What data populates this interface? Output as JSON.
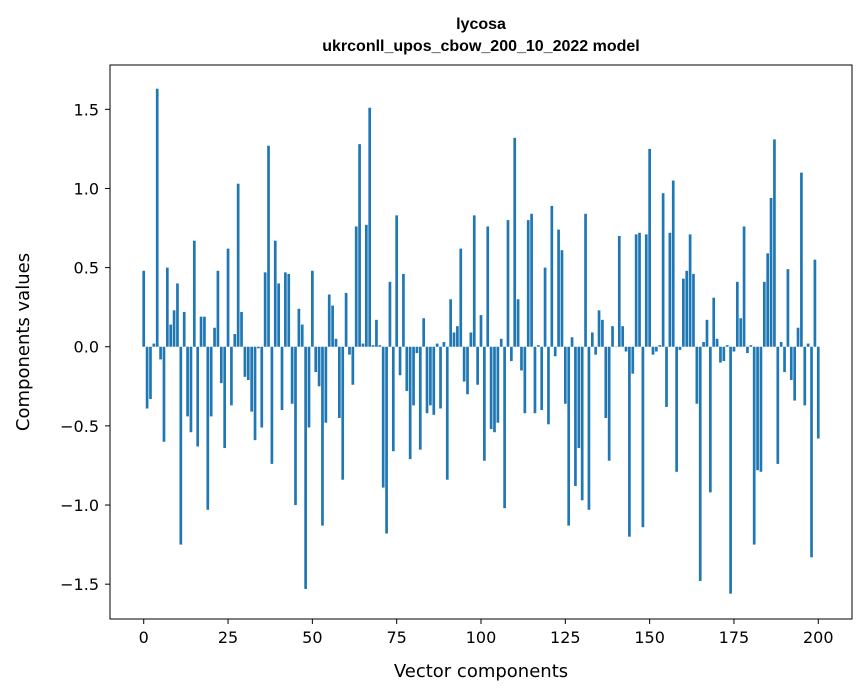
{
  "chart_data": {
    "type": "bar",
    "title": "lycosa",
    "subtitle": "ukrconll_upos_cbow_200_10_2022 model",
    "xlabel": "Vector components",
    "ylabel": "Components values",
    "xlim": [
      -10,
      210
    ],
    "ylim": [
      -1.72,
      1.78
    ],
    "xticks": [
      0,
      25,
      50,
      75,
      100,
      125,
      150,
      175,
      200
    ],
    "yticks": [
      -1.5,
      -1.0,
      -0.5,
      0.0,
      0.5,
      1.0,
      1.5
    ],
    "ytick_labels": [
      "−1.5",
      "−1.0",
      "−0.5",
      "0.0",
      "0.5",
      "1.0",
      "1.5"
    ],
    "grid": false,
    "bar_color": "#1f77b4",
    "values": [
      0.48,
      -0.39,
      -0.33,
      0.02,
      1.63,
      -0.08,
      -0.6,
      0.5,
      0.14,
      0.23,
      0.4,
      -1.25,
      0.22,
      -0.44,
      -0.54,
      0.67,
      -0.63,
      0.19,
      0.19,
      -1.03,
      -0.44,
      0.12,
      0.48,
      -0.23,
      -0.64,
      0.62,
      -0.37,
      0.08,
      1.03,
      0.22,
      -0.19,
      -0.21,
      -0.41,
      -0.59,
      -0.01,
      -0.51,
      0.47,
      1.27,
      -0.74,
      0.67,
      0.4,
      -0.4,
      0.47,
      0.46,
      -0.36,
      -1.0,
      0.24,
      0.14,
      -1.53,
      -0.51,
      0.48,
      -0.16,
      -0.25,
      -1.13,
      -0.48,
      0.33,
      0.26,
      0.05,
      -0.45,
      -0.84,
      0.34,
      -0.05,
      -0.24,
      0.76,
      1.28,
      0.02,
      0.77,
      1.51,
      0.01,
      0.17,
      0.01,
      -0.89,
      -1.18,
      0.41,
      -0.66,
      0.83,
      -0.18,
      0.46,
      -0.28,
      -0.71,
      -0.37,
      -0.04,
      -0.65,
      0.18,
      -0.42,
      -0.37,
      -0.43,
      0.02,
      -0.39,
      0.03,
      -0.84,
      0.3,
      0.09,
      0.13,
      0.62,
      -0.22,
      -0.3,
      0.09,
      0.83,
      -0.24,
      0.2,
      -0.72,
      0.76,
      -0.52,
      -0.54,
      -0.48,
      0.05,
      -1.02,
      0.8,
      -0.09,
      1.32,
      0.3,
      -0.15,
      -0.42,
      0.8,
      0.84,
      -0.42,
      0.01,
      -0.4,
      0.5,
      -0.49,
      0.89,
      -0.06,
      0.74,
      0.61,
      -0.36,
      -1.13,
      0.06,
      -0.88,
      -0.64,
      -0.97,
      0.84,
      -1.03,
      0.09,
      -0.05,
      0.23,
      0.17,
      -0.45,
      -0.72,
      0.13,
      0.0,
      0.7,
      0.13,
      -0.03,
      -1.2,
      -0.17,
      0.71,
      0.72,
      -1.14,
      0.71,
      1.25,
      -0.05,
      -0.03,
      0.01,
      0.97,
      -0.38,
      0.72,
      1.05,
      -0.79,
      -0.02,
      0.43,
      0.48,
      0.71,
      0.46,
      -0.36,
      -1.48,
      0.03,
      0.17,
      -0.92,
      0.31,
      0.05,
      -0.1,
      -0.09,
      0.01,
      -1.56,
      -0.03,
      0.41,
      0.18,
      0.76,
      -0.04,
      0.01,
      -1.25,
      -0.78,
      -0.79,
      0.41,
      0.59,
      0.94,
      1.31,
      -0.74,
      0.03,
      -0.16,
      0.49,
      -0.21,
      -0.34,
      0.12,
      1.1,
      -0.37,
      0.02,
      -1.33,
      0.55,
      -0.58
    ]
  }
}
